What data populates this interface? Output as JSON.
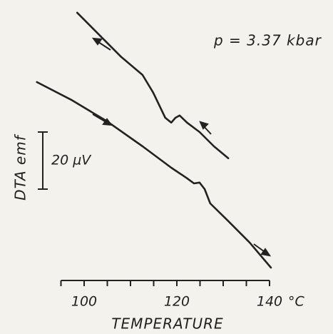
{
  "chart_data": {
    "type": "line",
    "title": "p = 3.37 kbar",
    "xlabel": "TEMPERATURE",
    "ylabel": "DTA  emf",
    "x_unit": "°C",
    "scale_bar": {
      "value": 20,
      "label": "20 µV"
    },
    "xlim": [
      95,
      140
    ],
    "xticks": [
      100,
      120,
      140
    ],
    "minor_xticks": [
      95,
      105,
      110,
      115,
      125,
      130,
      135
    ],
    "ylim": [
      0,
      96
    ],
    "series": [
      {
        "color": "#222222",
        "x": [
          89.8,
          97.2,
          104.9,
          112.6,
          118.8,
          122.2,
          123.7,
          124.9,
          126,
          127.2,
          131.1,
          135.7,
          140.3
        ],
        "values": [
          67.5,
          61.3,
          53.8,
          45,
          37.5,
          33.8,
          32,
          32.3,
          30,
          25,
          18.8,
          11.3,
          2.5
        ]
      },
      {
        "color": "#222222",
        "x": [
          98.5,
          103.4,
          108,
          112.6,
          114.9,
          117.5,
          118.8,
          119.7,
          120.6,
          122.2,
          124.9,
          128,
          131.1
        ],
        "values": [
          91.8,
          83.8,
          76.3,
          70,
          63.8,
          55,
          53.3,
          55,
          55.8,
          53.3,
          50,
          45,
          40.8
        ]
      }
    ]
  }
}
